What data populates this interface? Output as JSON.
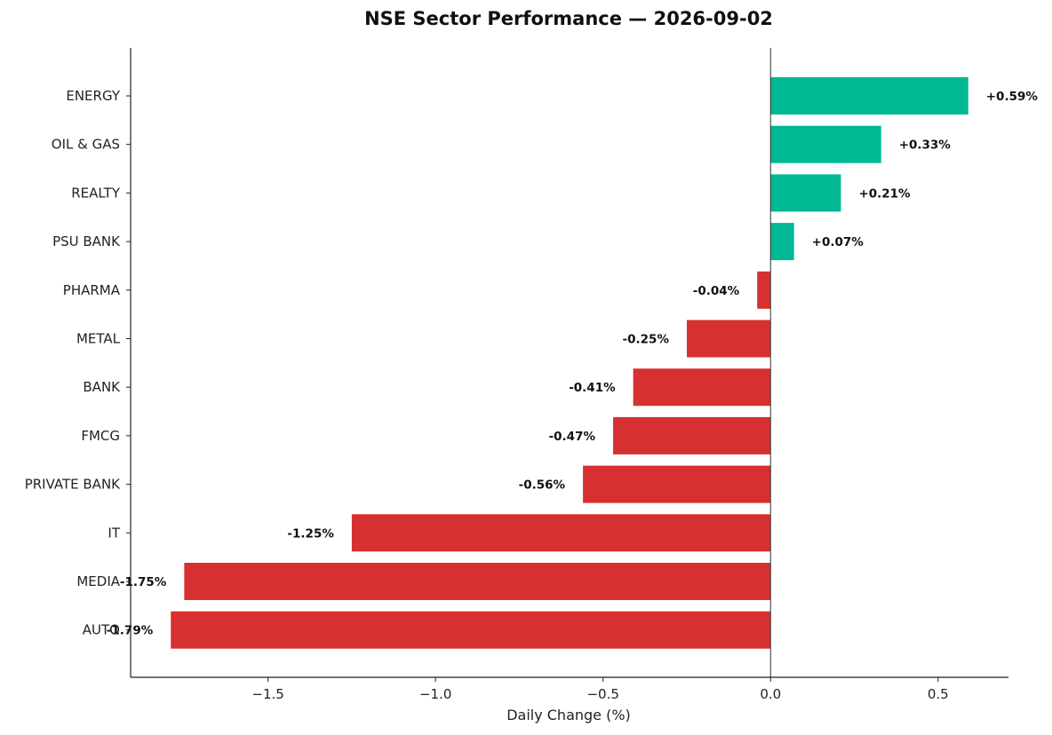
{
  "chart_data": {
    "type": "bar",
    "orientation": "horizontal",
    "title": "NSE Sector Performance — 2026-09-02",
    "xlabel": "Daily Change (%)",
    "ylabel": "",
    "categories": [
      "ENERGY",
      "OIL & GAS",
      "REALTY",
      "PSU BANK",
      "PHARMA",
      "METAL",
      "BANK",
      "FMCG",
      "PRIVATE BANK",
      "IT",
      "MEDIA",
      "AUTO"
    ],
    "values": [
      0.59,
      0.33,
      0.21,
      0.07,
      -0.04,
      -0.25,
      -0.41,
      -0.47,
      -0.56,
      -1.25,
      -1.75,
      -1.79
    ],
    "value_labels": [
      "+0.59%",
      "+0.33%",
      "+0.21%",
      "+0.07%",
      "-0.04%",
      "-0.25%",
      "-0.41%",
      "-0.47%",
      "-0.56%",
      "-1.25%",
      "-1.75%",
      "-1.79%"
    ],
    "xlim": [
      -1.91,
      0.71
    ],
    "xticks": [
      -1.5,
      -1.0,
      -0.5,
      0.0,
      0.5
    ],
    "xtick_labels": [
      "−1.5",
      "−1.0",
      "−0.5",
      "0.0",
      "0.5"
    ],
    "grid": false,
    "legend": "none",
    "colors": {
      "positive": "#00b894",
      "negative": "#d63031",
      "zero_line": "#333333"
    }
  }
}
